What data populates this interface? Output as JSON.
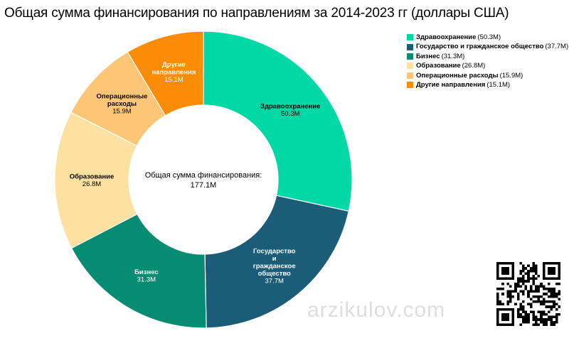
{
  "title": "Общая сумма финансирования по направлениям за 2014-2023 гг (доллары США)",
  "center": {
    "label": "Общая сумма финансирования:",
    "value": "177.1M"
  },
  "watermark": "arzikulov.com",
  "qr_code": "qr-code",
  "chart_data": {
    "type": "pie",
    "variant": "donut",
    "title": "Общая сумма финансирования по направлениям за 2014-2023 гг (доллары США)",
    "unit": "M",
    "total": 177.1,
    "legend_placement": "top-right",
    "categories": [
      "Здравоохранение",
      "Государство и гражданское общество",
      "Бизнес",
      "Образование",
      "Операционные расходы",
      "Другие направления"
    ],
    "values": [
      50.3,
      37.7,
      31.3,
      26.8,
      15.9,
      15.1
    ],
    "value_labels": [
      "50.3M",
      "37.7M",
      "31.3M",
      "26.8M",
      "15.9M",
      "15.1M"
    ],
    "slice_label_lines": [
      [
        "Здравоохранение"
      ],
      [
        "Государство",
        "и",
        "гражданское",
        "общество"
      ],
      [
        "Бизнес"
      ],
      [
        "Образование"
      ],
      [
        "Операционные",
        "расходы"
      ],
      [
        "Другие",
        "направления"
      ]
    ],
    "legend_values": [
      "(50.3M)",
      "(37.7M)",
      "(31.3M)",
      "(26.8M)",
      "(15.9M)",
      "(15.1M)"
    ],
    "colors": [
      "#00d9a5",
      "#1b5c78",
      "#068c73",
      "#fde1a0",
      "#fdc677",
      "#fb8c06"
    ],
    "label_colors": [
      "#000000",
      "#ffffff",
      "#ffffff",
      "#000000",
      "#000000",
      "#ffffff"
    ]
  }
}
